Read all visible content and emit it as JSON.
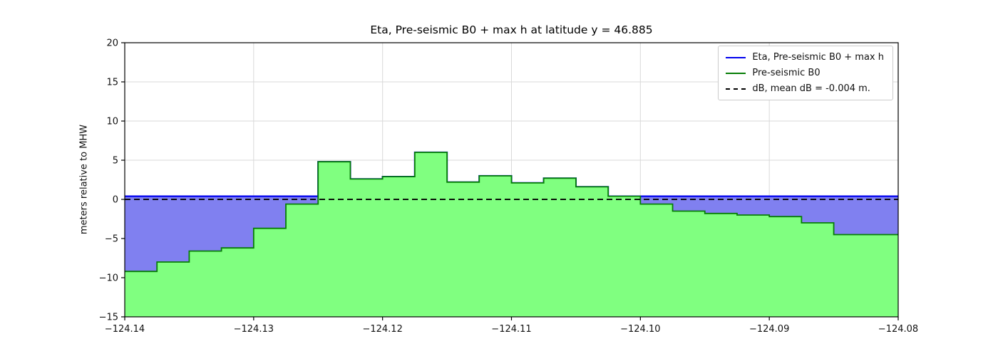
{
  "chart_data": {
    "type": "area",
    "title": "Eta, Pre-seismic B0 + max h at latitude y = 46.885",
    "xlabel": "",
    "ylabel": "meters relative to MHW",
    "xlim": [
      -124.14,
      -124.08
    ],
    "ylim": [
      -15,
      20
    ],
    "grid": true,
    "xticks": {
      "values": [
        -124.14,
        -124.13,
        -124.12,
        -124.11,
        -124.1,
        -124.09,
        -124.08
      ],
      "labels": [
        "−124.14",
        "−124.13",
        "−124.12",
        "−124.11",
        "−124.10",
        "−124.09",
        "−124.08"
      ]
    },
    "yticks": {
      "values": [
        -15,
        -10,
        -5,
        0,
        5,
        10,
        15,
        20
      ],
      "labels": [
        "−15",
        "−10",
        "−5",
        "0",
        "5",
        "10",
        "15",
        "20"
      ]
    },
    "colors": {
      "eta_line": "#0000ee",
      "eta_fill": "#8080f0",
      "b0_line": "#067d06",
      "b0_fill": "#80ff80",
      "db_line": "#000000",
      "grid": "#d9d9d9",
      "frame": "#000000"
    },
    "series": [
      {
        "name": "Eta, Pre-seismic B0 + max h",
        "type": "step-line-with-fill",
        "style": "solid",
        "color": "#0000ee",
        "fill": "#8080f0",
        "eta_level": 0.4
      },
      {
        "name": "Pre-seismic B0",
        "type": "step-area",
        "style": "solid",
        "color": "#067d06",
        "fill": "#80ff80",
        "x_edges": [
          -124.14,
          -124.1375,
          -124.135,
          -124.1325,
          -124.13,
          -124.1275,
          -124.125,
          -124.1225,
          -124.12,
          -124.1175,
          -124.115,
          -124.1125,
          -124.11,
          -124.1075,
          -124.105,
          -124.1025,
          -124.1,
          -124.0975,
          -124.095,
          -124.0925,
          -124.09,
          -124.0875,
          -124.085,
          -124.0825,
          -124.08
        ],
        "values": [
          -9.2,
          -8.0,
          -6.6,
          -6.2,
          -3.7,
          -0.6,
          4.8,
          2.6,
          2.9,
          6.0,
          2.2,
          3.0,
          2.1,
          2.7,
          1.6,
          0.4,
          -0.6,
          -1.5,
          -1.8,
          -2.0,
          -2.2,
          -3.0,
          -4.5,
          -4.5
        ]
      },
      {
        "name": "dB, mean dB = -0.004 m.",
        "type": "hline",
        "style": "dashed",
        "color": "#000000",
        "value": -0.004,
        "mean_dB_m": -0.004
      }
    ],
    "legend": {
      "position": "upper right",
      "entries": [
        {
          "label": "Eta, Pre-seismic B0 + max h",
          "color": "#0000ee",
          "style": "solid"
        },
        {
          "label": "Pre-seismic B0",
          "color": "#067d06",
          "style": "solid"
        },
        {
          "label": "dB, mean dB = -0.004 m.",
          "color": "#000000",
          "style": "dashed"
        }
      ]
    }
  }
}
